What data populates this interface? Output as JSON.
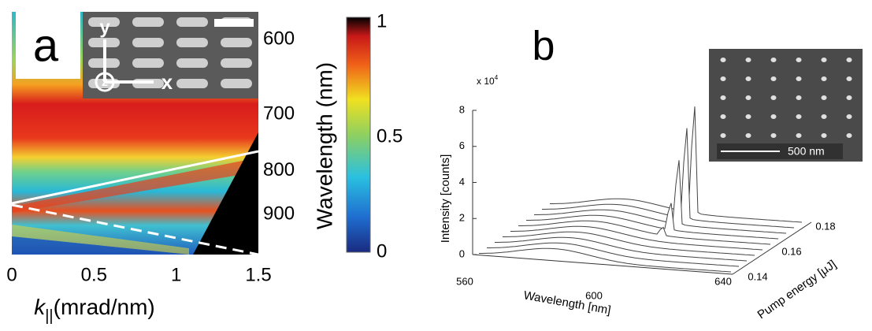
{
  "panel_a": {
    "label": "a",
    "x_axis": {
      "label": "k",
      "label_subscript": "||",
      "label_unit": "(mrad/nm)",
      "ticks": [
        0,
        0.5,
        1,
        1.5
      ]
    },
    "y_axis": {
      "label": "Wavelength (nm)",
      "ticks": [
        600,
        700,
        800,
        900
      ]
    },
    "colorbar": {
      "ticks": [
        0,
        0.5,
        1
      ]
    },
    "inset_axes": [
      "y",
      "z",
      "x"
    ]
  },
  "panel_b": {
    "label": "b",
    "y_axis": {
      "label": "Intensity [counts]",
      "multiplier": "x 10",
      "multiplier_exp": "4",
      "ticks": [
        0,
        2,
        4,
        6,
        8
      ]
    },
    "x_axis": {
      "label": "Wavelength [nm]",
      "ticks": [
        560,
        600,
        640
      ]
    },
    "z_axis": {
      "label": "Pump energy [μJ]",
      "ticks": [
        0.14,
        0.16,
        0.18
      ]
    },
    "scale_bar": "500 nm"
  }
}
